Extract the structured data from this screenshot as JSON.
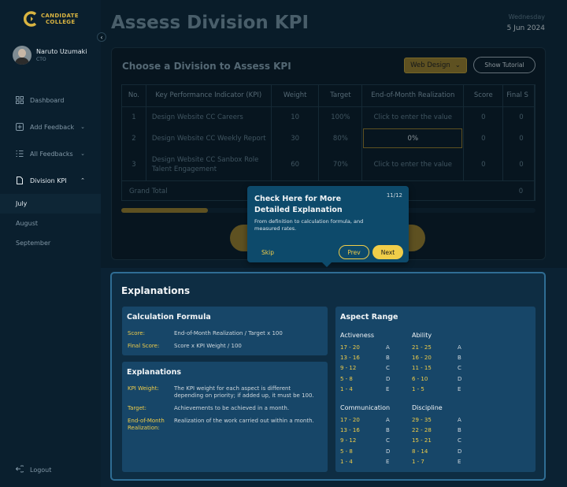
{
  "brand": {
    "line1": "CANDIDATE",
    "line2": "COLLEGE"
  },
  "user": {
    "name": "Naruto Uzumaki",
    "role": "CTO"
  },
  "nav": {
    "dashboard": "Dashboard",
    "add_feedback": "Add Feedback",
    "all_feedbacks": "All Feedbacks",
    "division_kpi": "Division KPI",
    "months": [
      "July",
      "August",
      "September"
    ],
    "logout": "Logout"
  },
  "header": {
    "title": "Assess Division KPI",
    "day": "Wednesday",
    "date": "5 Jun 2024"
  },
  "kpi": {
    "title": "Choose a Division to Assess KPI",
    "division": "Web Design",
    "tutorial": "Show Tutorial",
    "columns": [
      "No.",
      "Key Performance Indicator (KPI)",
      "Weight",
      "Target",
      "End-of-Month Realization",
      "Score",
      "Final S"
    ],
    "rows": [
      {
        "no": "1",
        "kpi": "Design Website CC Careers",
        "weight": "10",
        "target": "100%",
        "real": "Click to enter the value",
        "score": "0",
        "final": "0"
      },
      {
        "no": "2",
        "kpi": "Design Website CC Weekly Report",
        "weight": "30",
        "target": "80%",
        "real": "0%",
        "score": "0",
        "final": "0"
      },
      {
        "no": "3",
        "kpi": "Design Website CC Sanbox Role Talent Engagement",
        "weight": "60",
        "target": "70%",
        "real": "Click to enter the value",
        "score": "0",
        "final": "0"
      }
    ],
    "grand_total": "Grand Total",
    "grand_value": "0",
    "scroll_fraction": 0.21
  },
  "tooltip": {
    "title": "Check Here for More Detailed Explanation",
    "step": "11/12",
    "desc": "From definition to calculation formula, and measured rates.",
    "skip": "Skip",
    "prev": "Prev",
    "next": "Next"
  },
  "explanations": {
    "title": "Explanations",
    "formula": {
      "title": "Calculation Formula",
      "score_label": "Score:",
      "score_value": "End-of-Month Realization / Target x 100",
      "final_label": "Final Score:",
      "final_value": "Score x KPI Weight / 100"
    },
    "defs": {
      "title": "Explanations",
      "weight_label": "KPI Weight:",
      "weight_value": "The KPI weight for each aspect is different depending on priority; if added up, it must be 100.",
      "target_label": "Target:",
      "target_value": "Achievements to be achieved in a month.",
      "real_label": "End-of-Month Realization:",
      "real_value": "Realization of the work carried out within a month."
    },
    "aspect": {
      "title": "Aspect Range",
      "groups": [
        {
          "name": "Activeness",
          "ranges": [
            "17 - 20",
            "13 - 16",
            "9 - 12",
            "5 - 8",
            "1 - 4"
          ],
          "grades": [
            "A",
            "B",
            "C",
            "D",
            "E"
          ]
        },
        {
          "name": "Ability",
          "ranges": [
            "21 - 25",
            "16 - 20",
            "11 - 15",
            "6 - 10",
            "1 - 5"
          ],
          "grades": [
            "A",
            "B",
            "C",
            "D",
            "E"
          ]
        },
        {
          "name": "Communication",
          "ranges": [
            "17 - 20",
            "13 - 16",
            "9 - 12",
            "5 - 8",
            "1 - 4"
          ],
          "grades": [
            "A",
            "B",
            "C",
            "D",
            "E"
          ]
        },
        {
          "name": "Discipline",
          "ranges": [
            "29 - 35",
            "22 - 28",
            "15 - 21",
            "8 - 14",
            "1 - 7"
          ],
          "grades": [
            "A",
            "B",
            "C",
            "D",
            "E"
          ]
        }
      ]
    }
  }
}
